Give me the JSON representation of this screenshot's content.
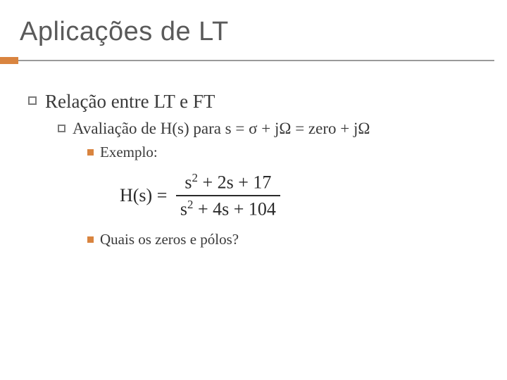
{
  "colors": {
    "accent": "#d9843f",
    "rule": "#9a9a9a",
    "title_text": "#5a5a5a",
    "body_text": "#3a3a3a",
    "background": "#ffffff"
  },
  "title": "Aplicações de LT",
  "level1": {
    "text": "Relação entre LT e FT"
  },
  "level2": {
    "text": "Avaliação de H(s) para s = σ + jΩ = zero + jΩ"
  },
  "level3a": {
    "text": "Exemplo:"
  },
  "formula": {
    "lhs": "H(s) =",
    "num_terms": [
      "s",
      "2",
      " + 2s + 17"
    ],
    "den_terms": [
      "s",
      "2",
      " + 4s + 104"
    ]
  },
  "level3b": {
    "text": "Quais os zeros e pólos?"
  },
  "typography": {
    "title_fontsize": 38,
    "l1_fontsize": 27,
    "l2_fontsize": 23,
    "l3_fontsize": 21,
    "formula_fontsize": 26
  }
}
